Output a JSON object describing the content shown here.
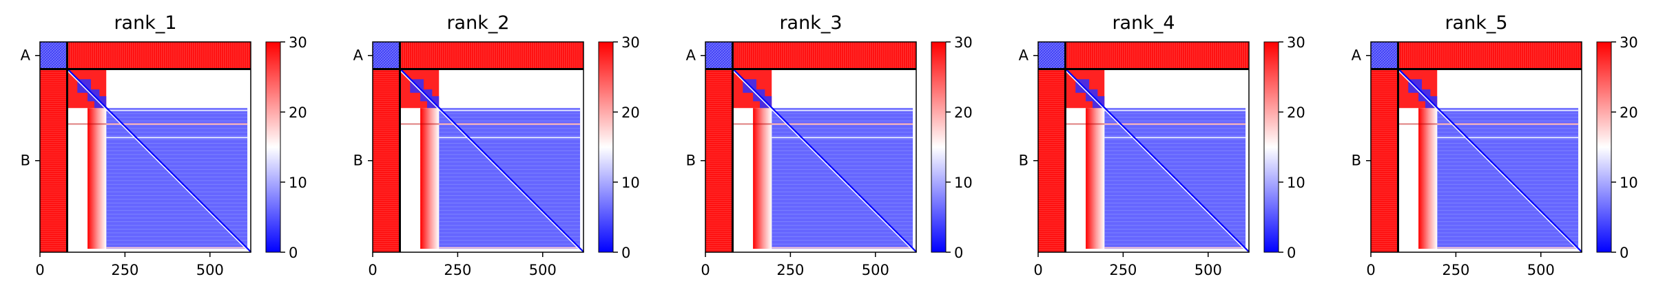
{
  "chart_data": [
    {
      "type": "heatmap",
      "title": "rank_1",
      "xticks": [
        0,
        250,
        500
      ],
      "xlim": [
        0,
        620
      ],
      "ylim": [
        620,
        0
      ],
      "chain_boundary": 80,
      "chains": [
        {
          "label": "A",
          "start": 0,
          "end": 80
        },
        {
          "label": "B",
          "start": 80,
          "end": 620
        }
      ],
      "colorbar": {
        "min": 0,
        "max": 30,
        "ticks": [
          0,
          10,
          20,
          30
        ],
        "colors": [
          "#0000ff",
          "#ffffff",
          "#ff0000"
        ]
      },
      "blocks": [
        {
          "region": "A-A",
          "range": [
            0,
            80,
            0,
            80
          ],
          "value": 5
        },
        {
          "region": "A-B",
          "range": [
            0,
            80,
            80,
            620
          ],
          "value": 29
        },
        {
          "region": "B-A",
          "range": [
            80,
            620,
            0,
            80
          ],
          "value": 29
        },
        {
          "region": "B-B residues 80-195 x 80-195",
          "range": [
            80,
            195,
            80,
            195
          ],
          "value": 28
        },
        {
          "region": "B-B core",
          "range": [
            195,
            610,
            195,
            610
          ],
          "value": 6
        },
        {
          "region": "B-B diagonal",
          "range": [
            80,
            620,
            80,
            620
          ],
          "value": 1
        }
      ]
    },
    {
      "type": "heatmap",
      "title": "rank_2",
      "xticks": [
        0,
        250,
        500
      ],
      "xlim": [
        0,
        620
      ],
      "ylim": [
        620,
        0
      ],
      "chain_boundary": 80,
      "chains": [
        {
          "label": "A",
          "start": 0,
          "end": 80
        },
        {
          "label": "B",
          "start": 80,
          "end": 620
        }
      ],
      "colorbar": {
        "min": 0,
        "max": 30,
        "ticks": [
          0,
          10,
          20,
          30
        ],
        "colors": [
          "#0000ff",
          "#ffffff",
          "#ff0000"
        ]
      },
      "blocks": [
        {
          "region": "A-A",
          "range": [
            0,
            80,
            0,
            80
          ],
          "value": 5
        },
        {
          "region": "A-B",
          "range": [
            0,
            80,
            80,
            620
          ],
          "value": 29
        },
        {
          "region": "B-A",
          "range": [
            80,
            620,
            0,
            80
          ],
          "value": 29
        },
        {
          "region": "B-B residues 80-195 x 80-195",
          "range": [
            80,
            195,
            80,
            195
          ],
          "value": 28
        },
        {
          "region": "B-B core",
          "range": [
            195,
            610,
            195,
            610
          ],
          "value": 6
        },
        {
          "region": "B-B diagonal",
          "range": [
            80,
            620,
            80,
            620
          ],
          "value": 1
        }
      ]
    },
    {
      "type": "heatmap",
      "title": "rank_3",
      "xticks": [
        0,
        250,
        500
      ],
      "xlim": [
        0,
        620
      ],
      "ylim": [
        620,
        0
      ],
      "chain_boundary": 80,
      "chains": [
        {
          "label": "A",
          "start": 0,
          "end": 80
        },
        {
          "label": "B",
          "start": 80,
          "end": 620
        }
      ],
      "colorbar": {
        "min": 0,
        "max": 30,
        "ticks": [
          0,
          10,
          20,
          30
        ],
        "colors": [
          "#0000ff",
          "#ffffff",
          "#ff0000"
        ]
      },
      "blocks": [
        {
          "region": "A-A",
          "range": [
            0,
            80,
            0,
            80
          ],
          "value": 5
        },
        {
          "region": "A-B",
          "range": [
            0,
            80,
            80,
            620
          ],
          "value": 29
        },
        {
          "region": "B-A",
          "range": [
            80,
            620,
            0,
            80
          ],
          "value": 29
        },
        {
          "region": "B-B residues 80-195 x 80-195",
          "range": [
            80,
            195,
            80,
            195
          ],
          "value": 28
        },
        {
          "region": "B-B core",
          "range": [
            195,
            610,
            195,
            610
          ],
          "value": 6
        },
        {
          "region": "B-B diagonal",
          "range": [
            80,
            620,
            80,
            620
          ],
          "value": 1
        }
      ]
    },
    {
      "type": "heatmap",
      "title": "rank_4",
      "xticks": [
        0,
        250,
        500
      ],
      "xlim": [
        0,
        620
      ],
      "ylim": [
        620,
        0
      ],
      "chain_boundary": 80,
      "chains": [
        {
          "label": "A",
          "start": 0,
          "end": 80
        },
        {
          "label": "B",
          "start": 80,
          "end": 620
        }
      ],
      "colorbar": {
        "min": 0,
        "max": 30,
        "ticks": [
          0,
          10,
          20,
          30
        ],
        "colors": [
          "#0000ff",
          "#ffffff",
          "#ff0000"
        ]
      },
      "blocks": [
        {
          "region": "A-A",
          "range": [
            0,
            80,
            0,
            80
          ],
          "value": 5
        },
        {
          "region": "A-B",
          "range": [
            0,
            80,
            80,
            620
          ],
          "value": 29
        },
        {
          "region": "B-A",
          "range": [
            80,
            620,
            0,
            80
          ],
          "value": 29
        },
        {
          "region": "B-B residues 80-195 x 80-195",
          "range": [
            80,
            195,
            80,
            195
          ],
          "value": 28
        },
        {
          "region": "B-B core",
          "range": [
            195,
            610,
            195,
            610
          ],
          "value": 6
        },
        {
          "region": "B-B diagonal",
          "range": [
            80,
            620,
            80,
            620
          ],
          "value": 1
        }
      ]
    },
    {
      "type": "heatmap",
      "title": "rank_5",
      "xticks": [
        0,
        250,
        500
      ],
      "xlim": [
        0,
        620
      ],
      "ylim": [
        620,
        0
      ],
      "chain_boundary": 80,
      "chains": [
        {
          "label": "A",
          "start": 0,
          "end": 80
        },
        {
          "label": "B",
          "start": 80,
          "end": 620
        }
      ],
      "colorbar": {
        "min": 0,
        "max": 30,
        "ticks": [
          0,
          10,
          20,
          30
        ],
        "colors": [
          "#0000ff",
          "#ffffff",
          "#ff0000"
        ]
      },
      "blocks": [
        {
          "region": "A-A",
          "range": [
            0,
            80,
            0,
            80
          ],
          "value": 5
        },
        {
          "region": "A-B",
          "range": [
            0,
            80,
            80,
            620
          ],
          "value": 29
        },
        {
          "region": "B-A",
          "range": [
            80,
            620,
            0,
            80
          ],
          "value": 29
        },
        {
          "region": "B-B residues 80-195 x 80-195",
          "range": [
            80,
            195,
            80,
            195
          ],
          "value": 28
        },
        {
          "region": "B-B core",
          "range": [
            195,
            610,
            195,
            610
          ],
          "value": 6
        },
        {
          "region": "B-B diagonal",
          "range": [
            80,
            620,
            80,
            620
          ],
          "value": 1
        }
      ]
    }
  ]
}
